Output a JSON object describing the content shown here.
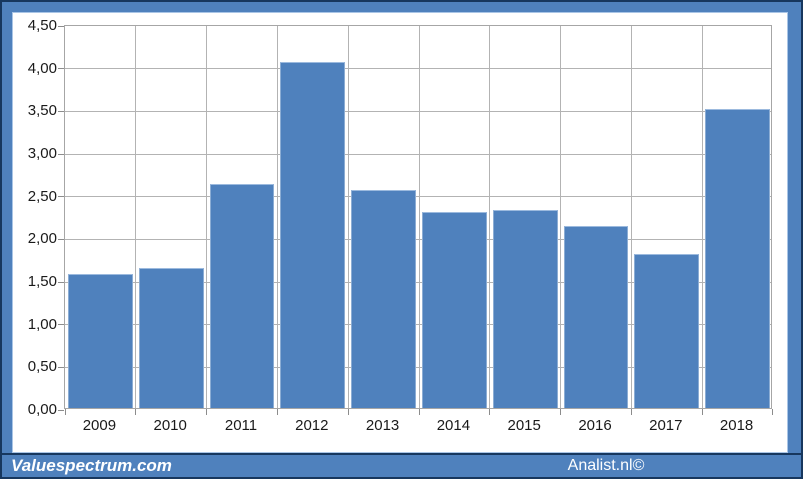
{
  "chart_data": {
    "type": "bar",
    "title": "",
    "xlabel": "",
    "ylabel": "",
    "categories": [
      "2009",
      "2010",
      "2011",
      "2012",
      "2013",
      "2014",
      "2015",
      "2016",
      "2017",
      "2018"
    ],
    "values": [
      1.57,
      1.64,
      2.63,
      4.05,
      2.55,
      2.3,
      2.32,
      2.13,
      1.8,
      3.5
    ],
    "ylim": [
      0,
      4.5
    ],
    "ytick_step": 0.5,
    "ytick_labels": [
      "0,00",
      "0,50",
      "1,00",
      "1,50",
      "2,00",
      "2,50",
      "3,00",
      "3,50",
      "4,00",
      "4,50"
    ],
    "grid": "both",
    "legend": "none",
    "bar_color": "#4f81bd"
  },
  "footer": {
    "left_text": "Valuespectrum.com",
    "right_text": "Analist.nl©"
  },
  "colors": {
    "frame_blue": "#4f81bd",
    "frame_outline": "#17375e",
    "bar": "#4f81bd",
    "gridline": "#b3b3b3",
    "plot_border": "#a6a6a6",
    "tick_text": "#1a1a1a",
    "footer_text": "#ffffff"
  }
}
